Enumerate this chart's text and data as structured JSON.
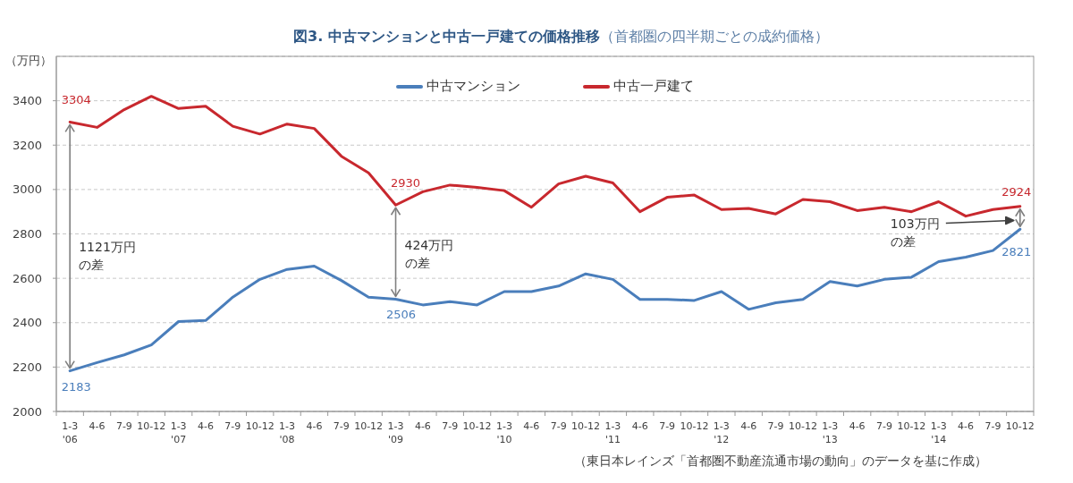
{
  "chart_data": {
    "type": "line",
    "title": "図3. 中古マンションと中古一戸建ての価格推移",
    "subtitle": "（首都圏の四半期ごとの成約価格）",
    "ylabel": "（万円）",
    "categories": [
      "1-3\n'06",
      "4-6",
      "7-9",
      "10-12",
      "1-3\n'07",
      "4-6",
      "7-9",
      "10-12",
      "1-3\n'08",
      "4-6",
      "7-9",
      "10-12",
      "1-3\n'09",
      "4-6",
      "7-9",
      "10-12",
      "1-3\n'10",
      "4-6",
      "7-9",
      "10-12",
      "1-3\n'11",
      "4-6",
      "7-9",
      "10-12",
      "1-3\n'12",
      "4-6",
      "7-9",
      "10-12",
      "1-3\n'13",
      "4-6",
      "7-9",
      "10-12",
      "1-3\n'14",
      "4-6",
      "7-9",
      "10-12"
    ],
    "series": [
      {
        "name": "中古マンション",
        "color": "#4a7ebb",
        "values": [
          2183,
          2220,
          2255,
          2300,
          2405,
          2410,
          2515,
          2595,
          2640,
          2655,
          2590,
          2515,
          2506,
          2480,
          2495,
          2480,
          2540,
          2540,
          2565,
          2620,
          2595,
          2505,
          2505,
          2500,
          2540,
          2460,
          2490,
          2505,
          2585,
          2565,
          2595,
          2605,
          2675,
          2695,
          2725,
          2821
        ],
        "value_labels": [
          "2183",
          null,
          null,
          null,
          null,
          null,
          null,
          null,
          null,
          null,
          null,
          null,
          "2506",
          null,
          null,
          null,
          null,
          null,
          null,
          null,
          null,
          null,
          null,
          null,
          null,
          null,
          null,
          null,
          null,
          null,
          null,
          null,
          null,
          null,
          null,
          "2821"
        ]
      },
      {
        "name": "中古一戸建て",
        "color": "#c8282e",
        "values": [
          3304,
          3280,
          3360,
          3420,
          3365,
          3375,
          3285,
          3250,
          3295,
          3275,
          3150,
          3075,
          2930,
          2990,
          3020,
          3010,
          2995,
          2920,
          3025,
          3060,
          3030,
          2900,
          2965,
          2975,
          2910,
          2915,
          2890,
          2955,
          2945,
          2905,
          2920,
          2900,
          2945,
          2880,
          2910,
          2924
        ],
        "value_labels": [
          "3304",
          null,
          null,
          null,
          null,
          null,
          null,
          null,
          null,
          null,
          null,
          null,
          "2930",
          null,
          null,
          null,
          null,
          null,
          null,
          null,
          null,
          null,
          null,
          null,
          null,
          null,
          null,
          null,
          null,
          null,
          null,
          null,
          null,
          null,
          null,
          "2924"
        ]
      }
    ],
    "ylim": [
      2000,
      3600
    ],
    "yticks": [
      2000,
      2200,
      2400,
      2600,
      2800,
      3000,
      3200,
      3400
    ],
    "grid": "y",
    "legend": "top",
    "annotations": [
      "1121万円の差",
      "424万円の差",
      "103万円の差",
      "（東日本レインズ「首都圏不動産流通市場の動向」のデータを基に作成）"
    ]
  }
}
